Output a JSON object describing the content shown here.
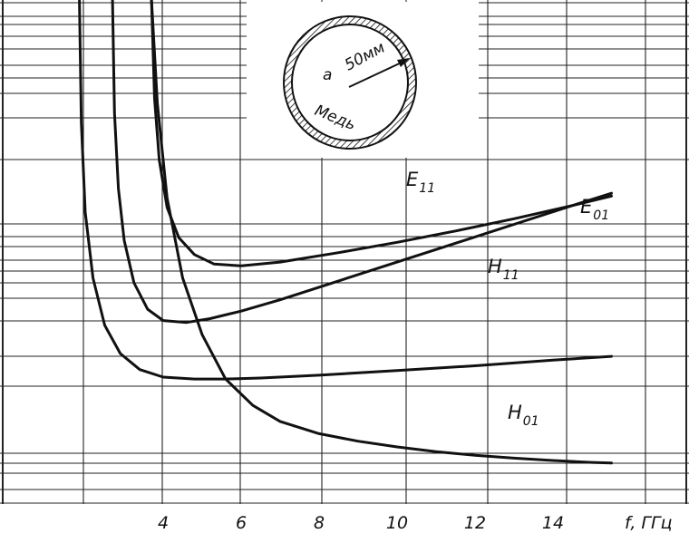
{
  "chart_data": {
    "type": "line",
    "title": "",
    "xlabel": "f, ГГц",
    "ylabel": "",
    "xlim": [
      2,
      15.5
    ],
    "x_ticks": [
      4,
      6,
      8,
      10,
      12,
      14
    ],
    "x_tick_labels": [
      "4",
      "6",
      "8",
      "10",
      "12",
      "14"
    ],
    "grid": true,
    "inset": {
      "radius_label": "a",
      "radius_value": "50мм",
      "material": "Медь"
    },
    "series": [
      {
        "name": "E",
        "subscript": "11",
        "x": [
          3.7,
          3.78,
          3.9,
          4.1,
          4.4,
          4.8,
          5.3,
          6.0,
          7.0,
          8.5,
          10.0,
          11.5,
          13.0,
          14.5,
          15.5
        ],
        "y": [
          5.0,
          3.95,
          3.3,
          2.8,
          2.48,
          2.3,
          2.2,
          2.18,
          2.22,
          2.32,
          2.43,
          2.55,
          2.68,
          2.82,
          2.92
        ]
      },
      {
        "name": "E",
        "subscript": "01",
        "x": [
          2.7,
          2.75,
          2.85,
          3.0,
          3.25,
          3.6,
          4.0,
          4.6,
          5.2,
          6.0,
          7.0,
          8.5,
          10.0,
          11.5,
          13.0,
          14.5,
          15.5
        ],
        "y": [
          5.0,
          3.8,
          3.0,
          2.45,
          2.0,
          1.72,
          1.6,
          1.58,
          1.62,
          1.7,
          1.82,
          2.02,
          2.22,
          2.42,
          2.62,
          2.82,
          2.95
        ]
      },
      {
        "name": "H",
        "subscript": "11",
        "x": [
          1.85,
          1.9,
          2.0,
          2.2,
          2.5,
          2.9,
          3.4,
          4.0,
          4.8,
          5.6,
          6.5,
          8.0,
          10.0,
          12.0,
          14.0,
          15.5
        ],
        "y": [
          5.0,
          3.7,
          2.75,
          2.05,
          1.55,
          1.25,
          1.08,
          1.0,
          0.98,
          0.98,
          0.99,
          1.02,
          1.07,
          1.12,
          1.18,
          1.22
        ]
      },
      {
        "name": "H",
        "subscript": "01",
        "x": [
          3.7,
          3.85,
          4.1,
          4.5,
          5.0,
          5.6,
          6.3,
          7.0,
          8.0,
          9.0,
          10.0,
          11.0,
          12.0,
          13.0,
          14.0,
          15.0,
          15.5
        ],
        "y": [
          5.0,
          3.9,
          2.9,
          2.05,
          1.45,
          0.98,
          0.7,
          0.53,
          0.4,
          0.32,
          0.26,
          0.21,
          0.17,
          0.14,
          0.115,
          0.095,
          0.088
        ]
      }
    ]
  }
}
